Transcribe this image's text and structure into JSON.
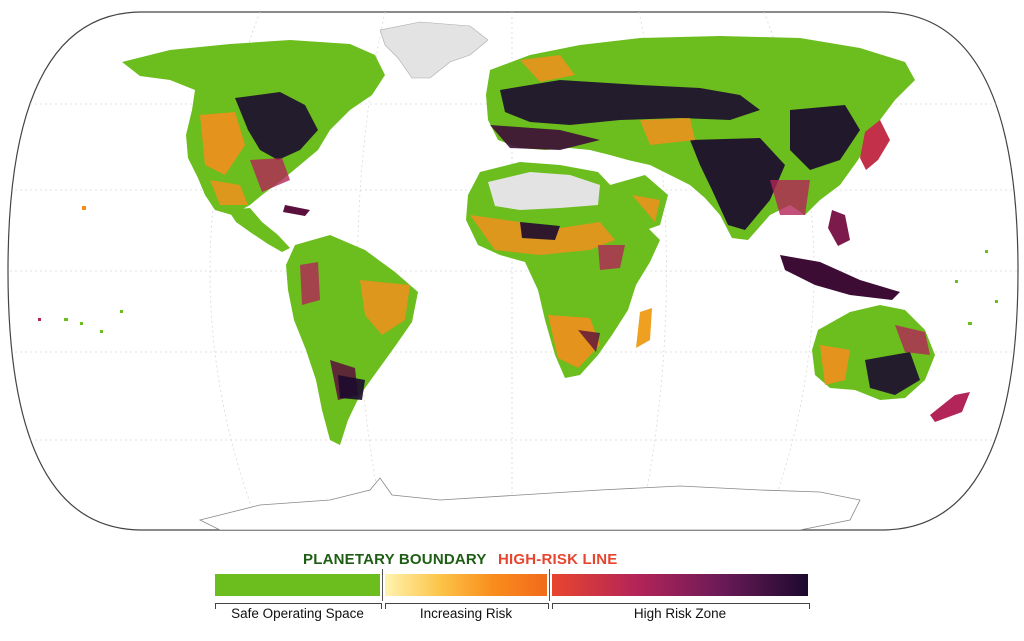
{
  "legend": {
    "planetary_boundary": "PLANETARY BOUNDARY",
    "high_risk_line": "HIGH-RISK LINE",
    "zones": [
      {
        "label": "Safe Operating Space"
      },
      {
        "label": "Increasing Risk"
      },
      {
        "label": "High Risk Zone"
      }
    ]
  },
  "colors": {
    "safe": "#6cbd1e",
    "planetary_boundary_text": "#1e5e14",
    "high_risk_text": "#e8452f",
    "risk_low": "#fff3b0",
    "risk_mid": "#f98d1c",
    "risk_high": "#b32458",
    "risk_max": "#1c0a2e",
    "ice": "#e3e3e3"
  }
}
